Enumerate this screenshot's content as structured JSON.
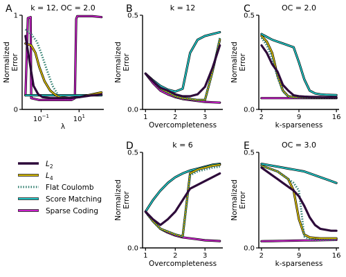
{
  "colors": {
    "L2": "#2d0a3a",
    "L4": "#d4b800",
    "flat_coulomb": "#2e7d6e",
    "score_matching": "#22c8c8",
    "sparse_coding": "#cc22cc"
  },
  "legend": {
    "placement": "middle-left",
    "items": [
      {
        "key": "L2",
        "label": "L",
        "sub": "2",
        "style": "line"
      },
      {
        "key": "L4",
        "label": "L",
        "sub": "4",
        "style": "double"
      },
      {
        "key": "flat_coulomb",
        "label": "Flat Coulomb",
        "sub": "",
        "style": "dotted"
      },
      {
        "key": "score_matching",
        "label": "Score Matching",
        "sub": "",
        "style": "double"
      },
      {
        "key": "sparse_coding",
        "label": "Sparse Coding",
        "sub": "",
        "style": "double"
      }
    ]
  },
  "chart_data": [
    {
      "panel": "A",
      "type": "line",
      "title": "k = 12, OC = 2.0",
      "xlabel": "λ",
      "ylabel": "Normalized Error",
      "xscale": "log",
      "xlim": [
        0.01,
        200
      ],
      "ylim": [
        0,
        1.0
      ],
      "xticks": [
        {
          "v": 0.1,
          "base": "10",
          "exp": "−1"
        },
        {
          "v": 10,
          "base": "10",
          "exp": "1"
        }
      ],
      "yticks": [
        {
          "v": 0,
          "label": "0"
        },
        {
          "v": 1.0,
          "label": "1"
        }
      ],
      "series": [
        {
          "key": "L2",
          "x": [
            0.015,
            0.025,
            0.04,
            0.07,
            0.12,
            0.3,
            1,
            3,
            10,
            50,
            150
          ],
          "y": [
            0.78,
            0.5,
            0.25,
            0.16,
            0.13,
            0.12,
            0.12,
            0.12,
            0.13,
            0.15,
            0.16
          ]
        },
        {
          "key": "L4",
          "x": [
            0.015,
            0.03,
            0.05,
            0.08,
            0.15,
            0.3,
            0.6,
            1,
            3,
            10,
            50,
            150
          ],
          "y": [
            0.7,
            0.68,
            0.6,
            0.45,
            0.3,
            0.2,
            0.15,
            0.13,
            0.12,
            0.13,
            0.16,
            0.18
          ]
        },
        {
          "key": "flat_coulomb",
          "x": [
            0.015,
            0.03,
            0.06,
            0.1,
            0.2,
            0.4,
            0.8,
            1.5,
            3,
            10,
            50,
            150
          ],
          "y": [
            0.85,
            0.8,
            0.72,
            0.6,
            0.42,
            0.25,
            0.15,
            0.12,
            0.12,
            0.13,
            0.15,
            0.16
          ]
        },
        {
          "key": "score_matching",
          "x": [
            0.015,
            0.1,
            1,
            10,
            150
          ],
          "y": [
            0.15,
            0.15,
            0.15,
            0.15,
            0.15
          ]
        },
        {
          "key": "sparse_coding",
          "x": [
            0.015,
            0.02,
            0.028,
            0.03,
            0.08,
            0.3,
            1,
            2,
            4,
            6,
            7,
            8,
            20,
            50,
            150
          ],
          "y": [
            0.15,
            0.97,
            0.98,
            0.12,
            0.1,
            0.1,
            0.1,
            0.1,
            0.1,
            0.12,
            0.96,
            0.99,
            0.99,
            0.99,
            0.98
          ]
        }
      ]
    },
    {
      "panel": "B",
      "type": "line",
      "title": "k = 12",
      "xlabel": "Overcompleteness",
      "ylabel": "Normalized Error",
      "xscale": "linear",
      "xlim": [
        0.9,
        3.6
      ],
      "ylim": [
        0,
        0.5
      ],
      "xticks": [
        {
          "v": 1,
          "label": "1"
        },
        {
          "v": 2,
          "label": "2"
        },
        {
          "v": 3,
          "label": "3"
        }
      ],
      "yticks": [
        {
          "v": 0,
          "label": "0.0"
        },
        {
          "v": 0.5,
          "label": "0.5"
        }
      ],
      "series": [
        {
          "key": "L2",
          "x": [
            1,
            1.25,
            1.5,
            1.75,
            2,
            2.25,
            2.5,
            2.75,
            3,
            3.25,
            3.5
          ],
          "y": [
            0.19,
            0.15,
            0.115,
            0.1,
            0.08,
            0.07,
            0.07,
            0.08,
            0.12,
            0.22,
            0.34
          ]
        },
        {
          "key": "L4",
          "x": [
            1,
            1.25,
            1.5,
            1.75,
            2,
            2.25,
            2.5,
            2.75,
            3,
            3.25,
            3.5
          ],
          "y": [
            0.19,
            0.15,
            0.11,
            0.09,
            0.07,
            0.06,
            0.055,
            0.05,
            0.05,
            0.2,
            0.37
          ]
        },
        {
          "key": "flat_coulomb",
          "x": [
            1,
            1.25,
            1.5,
            1.75,
            2,
            2.25,
            2.5,
            2.75,
            3,
            3.25,
            3.5
          ],
          "y": [
            0.19,
            0.15,
            0.11,
            0.09,
            0.07,
            0.06,
            0.055,
            0.05,
            0.05,
            0.2,
            0.38
          ]
        },
        {
          "key": "score_matching",
          "x": [
            1,
            1.25,
            1.5,
            1.75,
            2,
            2.25,
            2.5,
            2.75,
            3,
            3.25,
            3.5
          ],
          "y": [
            0.19,
            0.155,
            0.125,
            0.105,
            0.095,
            0.11,
            0.3,
            0.37,
            0.39,
            0.4,
            0.41
          ]
        },
        {
          "key": "sparse_coding",
          "x": [
            1,
            1.25,
            1.5,
            1.75,
            2,
            2.25,
            2.5,
            2.75,
            3,
            3.25,
            3.5
          ],
          "y": [
            0.19,
            0.14,
            0.1,
            0.08,
            0.065,
            0.055,
            0.05,
            0.045,
            0.04,
            0.038,
            0.036
          ]
        }
      ]
    },
    {
      "panel": "C",
      "type": "line",
      "title": "OC = 2.0",
      "xlabel": "k-sparseness",
      "ylabel": "Normalized Error",
      "xscale": "linear",
      "xlim": [
        1.5,
        16.5
      ],
      "ylim": [
        0,
        0.5
      ],
      "xticks": [
        {
          "v": 2,
          "label": "2"
        },
        {
          "v": 9,
          "label": "9"
        },
        {
          "v": 16,
          "label": "16"
        }
      ],
      "yticks": [
        {
          "v": 0,
          "label": "0.0"
        },
        {
          "v": 0.5,
          "label": "0.5"
        }
      ],
      "series": [
        {
          "key": "L2",
          "x": [
            2,
            3,
            4,
            5,
            6,
            7,
            8,
            9,
            10,
            11,
            12,
            13,
            14,
            15,
            16
          ],
          "y": [
            0.34,
            0.3,
            0.24,
            0.2,
            0.13,
            0.1,
            0.075,
            0.07,
            0.068,
            0.067,
            0.066,
            0.066,
            0.065,
            0.065,
            0.065
          ]
        },
        {
          "key": "L4",
          "x": [
            2,
            3,
            4,
            5,
            6,
            7,
            8,
            9,
            10,
            11,
            12,
            13,
            14,
            15,
            16
          ],
          "y": [
            0.39,
            0.36,
            0.3,
            0.18,
            0.1,
            0.07,
            0.065,
            0.065,
            0.064,
            0.064,
            0.063,
            0.063,
            0.063,
            0.063,
            0.063
          ]
        },
        {
          "key": "flat_coulomb",
          "x": [
            2,
            3,
            4,
            5,
            6,
            7,
            8,
            9,
            10,
            11,
            12,
            13,
            14,
            15,
            16
          ],
          "y": [
            0.38,
            0.34,
            0.27,
            0.17,
            0.095,
            0.068,
            0.064,
            0.064,
            0.063,
            0.063,
            0.063,
            0.063,
            0.063,
            0.063,
            0.063
          ]
        },
        {
          "key": "score_matching",
          "x": [
            2,
            3,
            4,
            5,
            6,
            7,
            8,
            9,
            10,
            11,
            12,
            13,
            14,
            15,
            16
          ],
          "y": [
            0.4,
            0.385,
            0.37,
            0.36,
            0.35,
            0.34,
            0.33,
            0.25,
            0.16,
            0.1,
            0.085,
            0.08,
            0.078,
            0.077,
            0.076
          ]
        },
        {
          "key": "sparse_coding",
          "x": [
            2,
            4,
            6,
            8,
            10,
            12,
            14,
            16
          ],
          "y": [
            0.06,
            0.06,
            0.06,
            0.06,
            0.06,
            0.06,
            0.06,
            0.06
          ]
        }
      ]
    },
    {
      "panel": "D",
      "type": "line",
      "title": "k = 6",
      "xlabel": "Overcompleteness",
      "ylabel": "Normalized Error",
      "xscale": "linear",
      "xlim": [
        0.9,
        3.6
      ],
      "ylim": [
        0,
        0.5
      ],
      "xticks": [
        {
          "v": 1,
          "label": "1"
        },
        {
          "v": 2,
          "label": "2"
        },
        {
          "v": 3,
          "label": "3"
        }
      ],
      "yticks": [
        {
          "v": 0,
          "label": "0.0"
        },
        {
          "v": 0.5,
          "label": "0.5"
        }
      ],
      "series": [
        {
          "key": "L2",
          "x": [
            1,
            1.25,
            1.5,
            1.75,
            2,
            2.25,
            2.5,
            2.75,
            3,
            3.25,
            3.5
          ],
          "y": [
            0.19,
            0.15,
            0.12,
            0.15,
            0.19,
            0.25,
            0.31,
            0.33,
            0.35,
            0.37,
            0.39
          ]
        },
        {
          "key": "L4",
          "x": [
            1,
            1.25,
            1.5,
            1.75,
            2,
            2.25,
            2.5,
            2.75,
            3,
            3.25,
            3.5
          ],
          "y": [
            0.19,
            0.14,
            0.1,
            0.085,
            0.07,
            0.06,
            0.39,
            0.41,
            0.42,
            0.43,
            0.435
          ]
        },
        {
          "key": "flat_coulomb",
          "x": [
            1,
            1.25,
            1.5,
            1.75,
            2,
            2.25,
            2.5,
            2.75,
            3,
            3.25,
            3.5
          ],
          "y": [
            0.19,
            0.14,
            0.1,
            0.085,
            0.07,
            0.06,
            0.38,
            0.4,
            0.41,
            0.42,
            0.425
          ]
        },
        {
          "key": "score_matching",
          "x": [
            1,
            1.25,
            1.5,
            1.75,
            2,
            2.25,
            2.5,
            2.75,
            3,
            3.25,
            3.5
          ],
          "y": [
            0.19,
            0.25,
            0.3,
            0.34,
            0.37,
            0.39,
            0.405,
            0.415,
            0.425,
            0.435,
            0.44
          ]
        },
        {
          "key": "sparse_coding",
          "x": [
            1,
            1.25,
            1.5,
            1.75,
            2,
            2.25,
            2.5,
            2.75,
            3,
            3.25,
            3.5
          ],
          "y": [
            0.19,
            0.14,
            0.1,
            0.08,
            0.065,
            0.055,
            0.05,
            0.045,
            0.04,
            0.038,
            0.036
          ]
        }
      ]
    },
    {
      "panel": "E",
      "type": "line",
      "title": "OC = 3.0",
      "xlabel": "k-sparseness",
      "ylabel": "Normalized Error",
      "xscale": "linear",
      "xlim": [
        1.5,
        16.5
      ],
      "ylim": [
        0,
        0.5
      ],
      "xticks": [
        {
          "v": 2,
          "label": "2"
        },
        {
          "v": 9,
          "label": "9"
        },
        {
          "v": 16,
          "label": "16"
        }
      ],
      "yticks": [
        {
          "v": 0,
          "label": "0.0"
        },
        {
          "v": 0.5,
          "label": "0.5"
        }
      ],
      "series": [
        {
          "key": "L2",
          "x": [
            2,
            3,
            4,
            5,
            6,
            7,
            8,
            9,
            10,
            11,
            12,
            13,
            14,
            15,
            16
          ],
          "y": [
            0.42,
            0.4,
            0.38,
            0.36,
            0.34,
            0.32,
            0.3,
            0.27,
            0.22,
            0.16,
            0.12,
            0.1,
            0.095,
            0.09,
            0.09
          ]
        },
        {
          "key": "L4",
          "x": [
            2,
            3,
            4,
            5,
            6,
            7,
            8,
            9,
            10,
            11,
            12,
            13,
            14,
            15,
            16
          ],
          "y": [
            0.43,
            0.42,
            0.41,
            0.4,
            0.38,
            0.36,
            0.3,
            0.15,
            0.07,
            0.055,
            0.052,
            0.05,
            0.05,
            0.05,
            0.05
          ]
        },
        {
          "key": "flat_coulomb",
          "x": [
            2,
            3,
            4,
            5,
            6,
            7,
            8,
            9,
            10,
            11,
            12,
            13,
            14,
            15,
            16
          ],
          "y": [
            0.43,
            0.42,
            0.41,
            0.4,
            0.38,
            0.36,
            0.34,
            0.3,
            0.06,
            0.045,
            0.043,
            0.042,
            0.042,
            0.042,
            0.042
          ]
        },
        {
          "key": "score_matching",
          "x": [
            2,
            3,
            4,
            5,
            6,
            7,
            8,
            9,
            10,
            11,
            12,
            13,
            14,
            15,
            16
          ],
          "y": [
            0.44,
            0.435,
            0.43,
            0.425,
            0.42,
            0.415,
            0.41,
            0.405,
            0.4,
            0.39,
            0.38,
            0.37,
            0.36,
            0.35,
            0.34
          ]
        },
        {
          "key": "sparse_coding",
          "x": [
            2,
            4,
            6,
            8,
            10,
            12,
            14,
            16
          ],
          "y": [
            0.035,
            0.036,
            0.037,
            0.038,
            0.039,
            0.04,
            0.041,
            0.042
          ]
        }
      ]
    }
  ]
}
